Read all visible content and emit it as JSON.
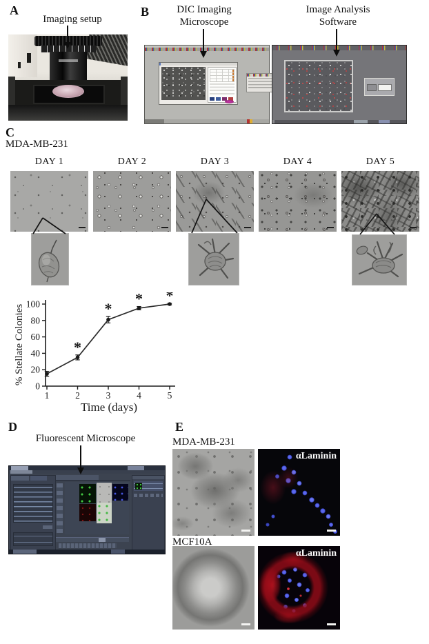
{
  "panel_a": {
    "letter": "A",
    "caption": "Imaging setup"
  },
  "panel_b": {
    "letter": "B",
    "microscope_caption_line1": "DIC Imaging",
    "microscope_caption_line2": "Microscope",
    "software_caption_line1": "Image Analysis",
    "software_caption_line2": "Software"
  },
  "panel_c": {
    "letter": "C",
    "cell_line": "MDA-MB-231",
    "day_labels": [
      "DAY 1",
      "DAY 2",
      "DAY 3",
      "DAY 4",
      "DAY 5"
    ]
  },
  "chart_data": {
    "type": "line",
    "x": [
      1,
      2,
      3,
      4,
      5
    ],
    "series": [
      {
        "name": "MDA-MB-231 stellate colonies",
        "values": [
          15,
          35,
          81,
          95,
          100
        ],
        "errors": [
          3,
          3,
          4,
          2,
          1
        ],
        "significance": [
          "",
          "*",
          "*",
          "*",
          "*"
        ]
      }
    ],
    "title": "",
    "xlabel": "Time (days)",
    "ylabel": "% Stellate Colonies",
    "xticks": [
      1,
      2,
      3,
      4,
      5
    ],
    "yticks": [
      0,
      20,
      40,
      60,
      80,
      100
    ],
    "xlim": [
      1,
      5
    ],
    "ylim": [
      0,
      105
    ],
    "grid": false,
    "legend": "none",
    "marker": "filled-circle",
    "line_color": "#2b2b2b"
  },
  "panel_d": {
    "letter": "D",
    "caption": "Fluorescent Microscope"
  },
  "panel_e": {
    "letter": "E",
    "rows": [
      {
        "cell_line": "MDA-MB-231",
        "stain_label": "αLaminin"
      },
      {
        "cell_line": "MCF10A",
        "stain_label": "αLaminin"
      }
    ]
  },
  "colors": {
    "nuclei_blue": "#4150d8",
    "laminin_red": "#c21a22",
    "fluor_green": "#3ec43e",
    "figure_text": "#111111"
  }
}
